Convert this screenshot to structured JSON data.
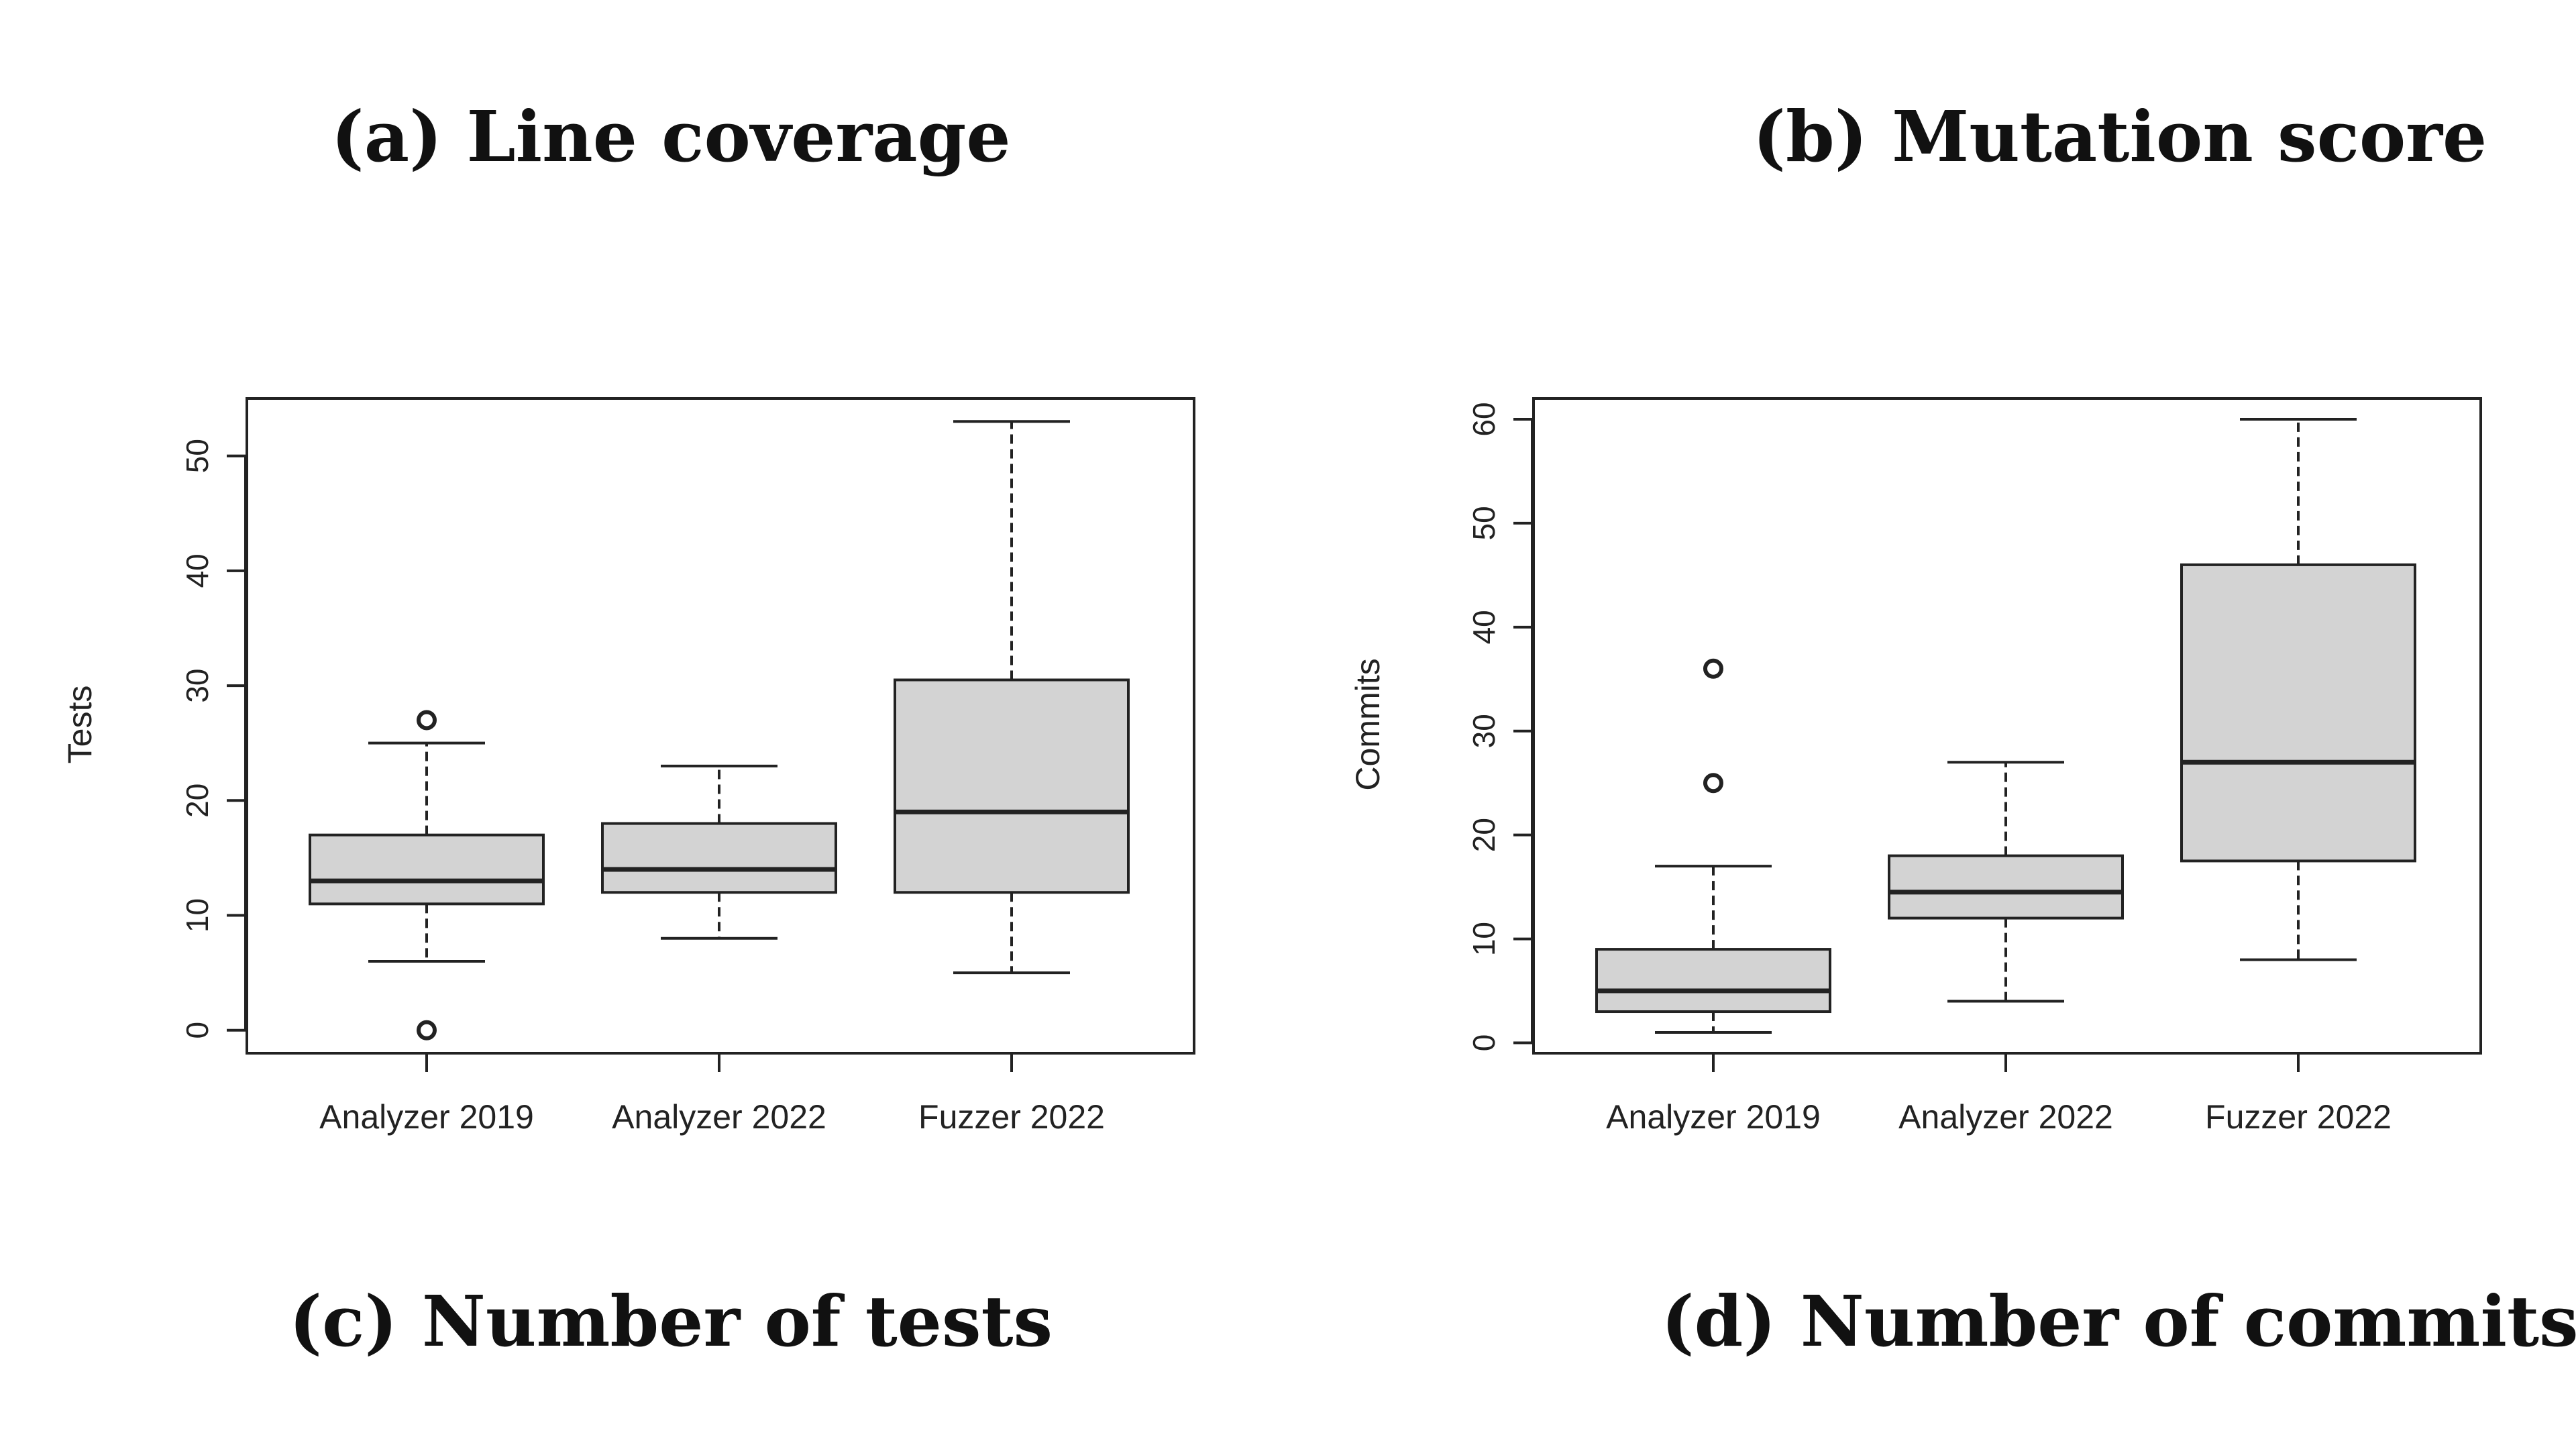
{
  "captions": {
    "a": "(a) Line coverage",
    "b": "(b) Mutation score",
    "c": "(c) Number of tests",
    "d": "(d) Number of commits"
  },
  "chart_data": [
    {
      "type": "boxplot",
      "title": "",
      "xlabel": "",
      "ylabel": "Tests",
      "categories": [
        "Analyzer 2019",
        "Analyzer 2022",
        "Fuzzer 2022"
      ],
      "ylim": [
        -2,
        55
      ],
      "yticks": [
        "0",
        "10",
        "20",
        "30",
        "40",
        "50"
      ],
      "boxes": [
        {
          "whisker_low": 6,
          "q1": 11,
          "median": 13,
          "q3": 17,
          "whisker_high": 25,
          "outliers": [
            0,
            27
          ]
        },
        {
          "whisker_low": 8,
          "q1": 12,
          "median": 14,
          "q3": 18,
          "whisker_high": 23,
          "outliers": []
        },
        {
          "whisker_low": 5,
          "q1": 12,
          "median": 19,
          "q3": 30.5,
          "whisker_high": 53,
          "outliers": []
        }
      ],
      "box_fill": "#d3d3d3",
      "grid": false,
      "legend": "none"
    },
    {
      "type": "boxplot",
      "title": "",
      "xlabel": "",
      "ylabel": "Commits",
      "categories": [
        "Analyzer 2019",
        "Analyzer 2022",
        "Fuzzer 2022"
      ],
      "ylim": [
        -1,
        62
      ],
      "yticks": [
        "0",
        "10",
        "20",
        "30",
        "40",
        "50",
        "60"
      ],
      "boxes": [
        {
          "whisker_low": 1,
          "q1": 3,
          "median": 5,
          "q3": 9,
          "whisker_high": 17,
          "outliers": [
            25,
            36
          ]
        },
        {
          "whisker_low": 4,
          "q1": 12,
          "median": 14.5,
          "q3": 18,
          "whisker_high": 27,
          "outliers": []
        },
        {
          "whisker_low": 8,
          "q1": 17.5,
          "median": 27,
          "q3": 46,
          "whisker_high": 60,
          "outliers": []
        }
      ],
      "box_fill": "#d3d3d3",
      "grid": false,
      "legend": "none"
    }
  ]
}
